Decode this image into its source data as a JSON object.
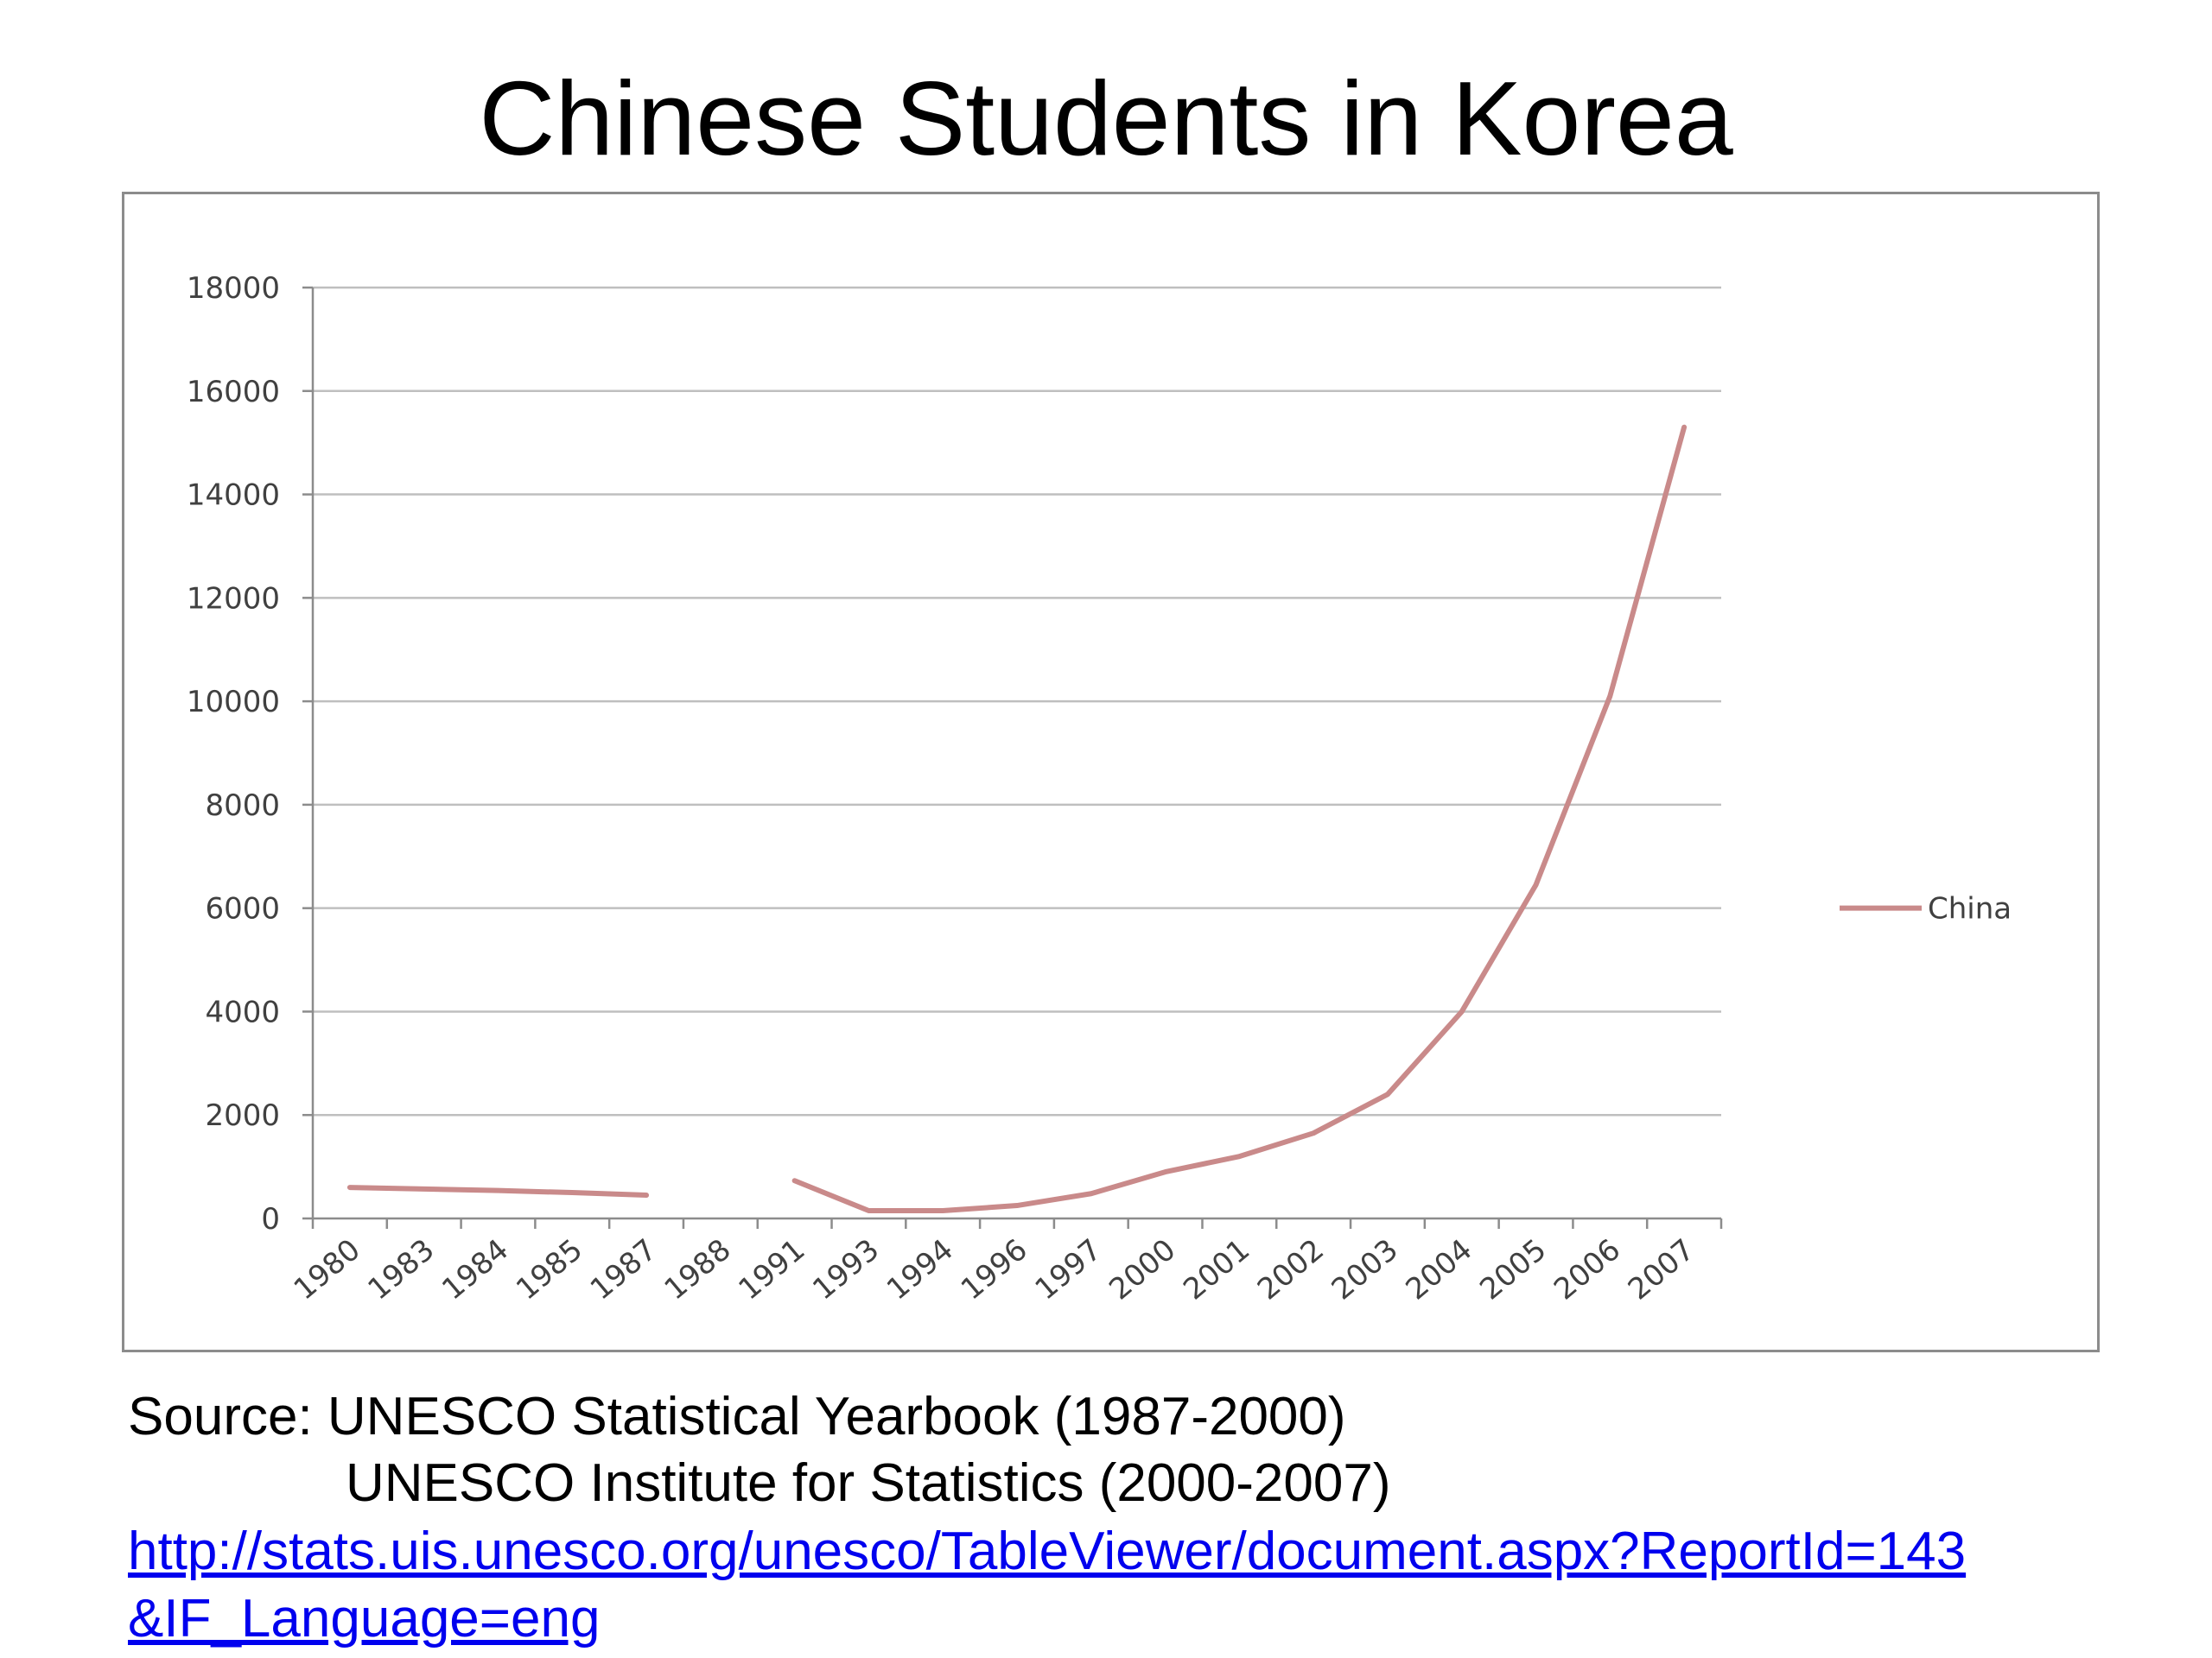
{
  "title": "Chinese Students in Korea",
  "source": {
    "line1": "Source: UNESCO Statistical Yearbook (1987-2000)",
    "line2": "UNESCO Institute for Statistics (2000-2007)",
    "link_part1": "http://stats.uis.unesco.org/unesco/TableViewer/document.aspx?ReportId=143",
    "link_part2": "&IF_Language=eng"
  },
  "chart_data": {
    "type": "line",
    "title": "",
    "xlabel": "",
    "ylabel": "",
    "categories": [
      "1980",
      "1983",
      "1984",
      "1985",
      "1987",
      "1988",
      "1991",
      "1993",
      "1994",
      "1996",
      "1997",
      "2000",
      "2001",
      "2002",
      "2003",
      "2004",
      "2005",
      "2006",
      "2007"
    ],
    "ylim": [
      0,
      18000
    ],
    "yticks": [
      "0",
      "2000",
      "4000",
      "6000",
      "8000",
      "10000",
      "12000",
      "14000",
      "16000",
      "18000"
    ],
    "grid": true,
    "legend_position": "right",
    "series": [
      {
        "name": "China",
        "color": "#c98a8a",
        "values": [
          600,
          570,
          540,
          500,
          450,
          null,
          730,
          150,
          150,
          250,
          480,
          900,
          1200,
          1650,
          2400,
          4000,
          6450,
          10100,
          15300
        ]
      }
    ]
  }
}
